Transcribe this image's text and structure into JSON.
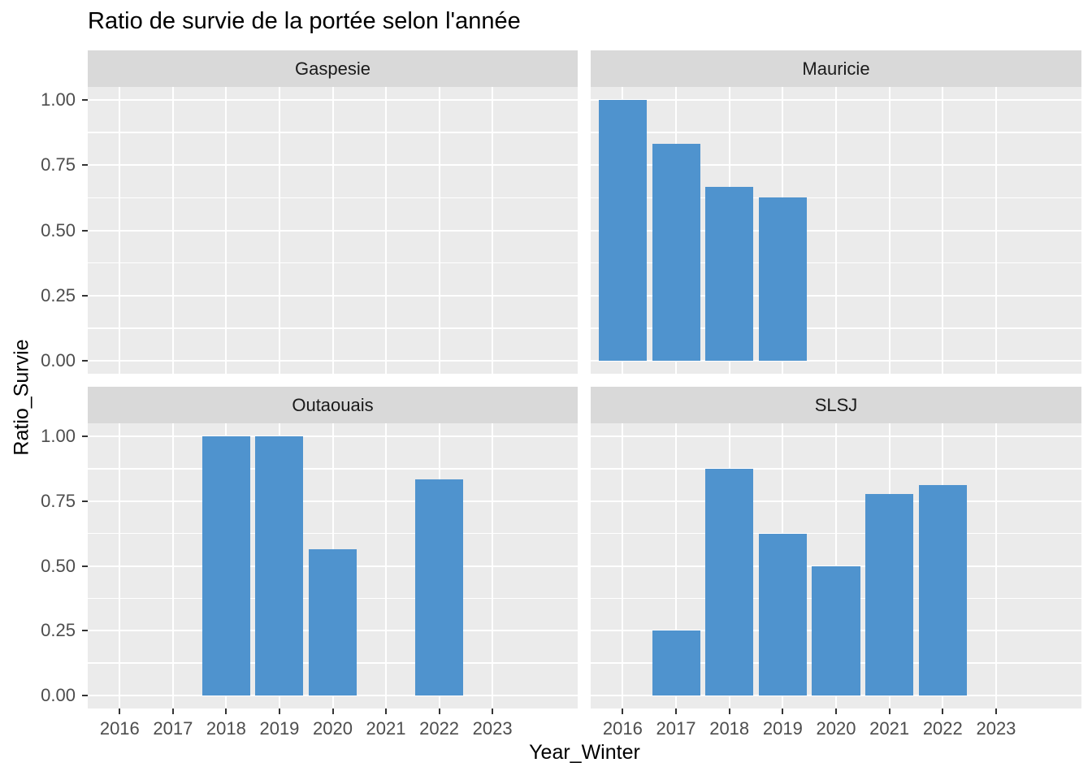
{
  "page": {
    "background": "#FFFFFF"
  },
  "chart_data": {
    "type": "bar",
    "title": "Ratio de survie de la portée selon l'année",
    "xlabel": "Year_Winter",
    "ylabel": "Ratio_Survie",
    "categories": [
      "2016",
      "2017",
      "2018",
      "2019",
      "2020",
      "2021",
      "2022",
      "2023"
    ],
    "y_axis": {
      "ticks": [
        {
          "label": "1.00",
          "value": 1.0
        },
        {
          "label": "0.75",
          "value": 0.75
        },
        {
          "label": "0.50",
          "value": 0.5
        },
        {
          "label": "0.25",
          "value": 0.25
        },
        {
          "label": "0.00",
          "value": 0.0
        }
      ],
      "minor_breaks": [
        0.875,
        0.625,
        0.375,
        0.125
      ],
      "lim": [
        0,
        1
      ]
    },
    "facets": [
      {
        "label": "Gaspesie",
        "values": [
          null,
          null,
          null,
          null,
          null,
          null,
          null,
          null
        ]
      },
      {
        "label": "Mauricie",
        "values": [
          1.0,
          0.833,
          0.667,
          0.625,
          null,
          null,
          null,
          null
        ]
      },
      {
        "label": "Outaouais",
        "values": [
          null,
          null,
          1.0,
          1.0,
          0.565,
          null,
          0.833,
          null
        ]
      },
      {
        "label": "SLSJ",
        "values": [
          null,
          0.25,
          0.875,
          0.625,
          0.5,
          0.778,
          0.8125,
          null
        ]
      }
    ],
    "layout_hints": {
      "grid": "on",
      "legend": "none",
      "facet_rows": 2,
      "facet_cols": 2,
      "bar_rel_width": 0.9,
      "y_expand": 0.05,
      "x_expand_units": 0.6
    }
  },
  "style": {
    "bar_color": "#4F93CE",
    "panel_bg": "#EBEBEB",
    "strip_bg": "#D9D9D9",
    "grid_color": "#FFFFFF",
    "axis_text_color": "#4D4D4D",
    "strip_text_color": "#1A1A1A",
    "title_color": "#000000",
    "tick_mark_color": "#333333"
  }
}
